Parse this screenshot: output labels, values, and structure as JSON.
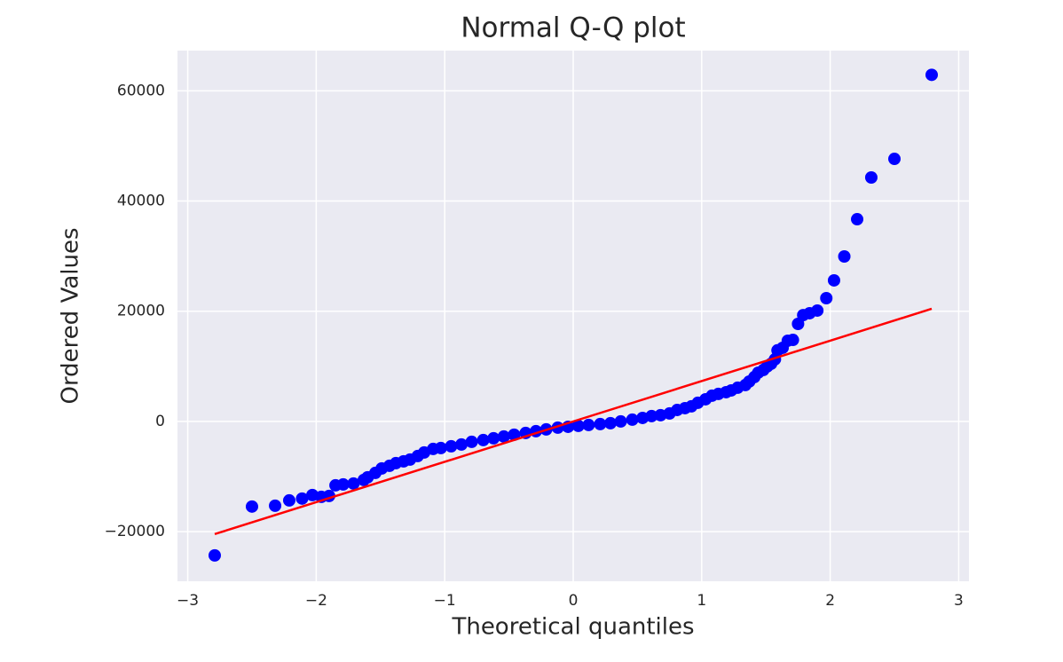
{
  "chart_data": {
    "type": "scatter",
    "title": "Normal Q-Q plot",
    "xlabel": "Theoretical quantiles",
    "ylabel": "Ordered Values",
    "xlim": [
      -3.08,
      3.08
    ],
    "ylim": [
      -29000,
      67300
    ],
    "xticks": [
      {
        "value": -3,
        "label": "−3"
      },
      {
        "value": -2,
        "label": "−2"
      },
      {
        "value": -1,
        "label": "−1"
      },
      0,
      1,
      2,
      3
    ],
    "yticks": [
      {
        "value": -20000,
        "label": "−20000"
      },
      0,
      20000,
      40000,
      60000
    ],
    "grid": true,
    "background": "#eaeaf2",
    "series": [
      {
        "type": "scatter",
        "color": "#0000ff",
        "x": [
          2.79,
          2.5,
          2.32,
          2.21,
          2.11,
          2.03,
          1.97,
          1.9,
          1.84,
          1.79,
          1.75,
          1.71,
          1.67,
          1.63,
          1.59,
          1.57,
          1.54,
          1.51,
          1.48,
          1.44,
          1.41,
          1.37,
          1.34,
          1.28,
          1.23,
          1.19,
          1.13,
          1.08,
          1.03,
          0.97,
          0.92,
          0.87,
          0.81,
          0.75,
          0.68,
          0.61,
          0.54,
          0.46,
          0.37,
          0.29,
          0.21,
          0.12,
          0.04,
          -0.04,
          -0.12,
          -0.21,
          -0.29,
          -0.37,
          -0.46,
          -0.54,
          -0.62,
          -0.7,
          -0.79,
          -0.87,
          -0.95,
          -1.03,
          -1.09,
          -1.16,
          -1.21,
          -1.27,
          -1.32,
          -1.38,
          -1.43,
          -1.49,
          -1.54,
          -1.6,
          -1.63,
          -1.71,
          -1.79,
          -1.85,
          -1.9,
          -1.96,
          -2.03,
          -2.11,
          -2.21,
          -2.32,
          -2.5,
          -2.79
        ],
        "values": [
          62900,
          47650,
          44270,
          36700,
          29940,
          25600,
          22370,
          20120,
          19640,
          19300,
          17700,
          14800,
          14650,
          13360,
          12900,
          11270,
          10460,
          9980,
          9340,
          8850,
          8050,
          7240,
          6600,
          6120,
          5630,
          5310,
          4990,
          4670,
          4020,
          3380,
          2740,
          2410,
          2090,
          1450,
          1130,
          970,
          640,
          320,
          0,
          -320,
          -480,
          -640,
          -800,
          -970,
          -1130,
          -1450,
          -1770,
          -2090,
          -2410,
          -2740,
          -3060,
          -3380,
          -3700,
          -4190,
          -4510,
          -4830,
          -4990,
          -5630,
          -6280,
          -6920,
          -7240,
          -7570,
          -8050,
          -8530,
          -9340,
          -10140,
          -10620,
          -11270,
          -11430,
          -11590,
          -13520,
          -13680,
          -13360,
          -14000,
          -14330,
          -15290,
          -15450,
          -24310
        ]
      },
      {
        "type": "line",
        "color": "#ff0000",
        "x": [
          -2.79,
          2.79
        ],
        "values": [
          -20440,
          20440
        ]
      }
    ]
  }
}
